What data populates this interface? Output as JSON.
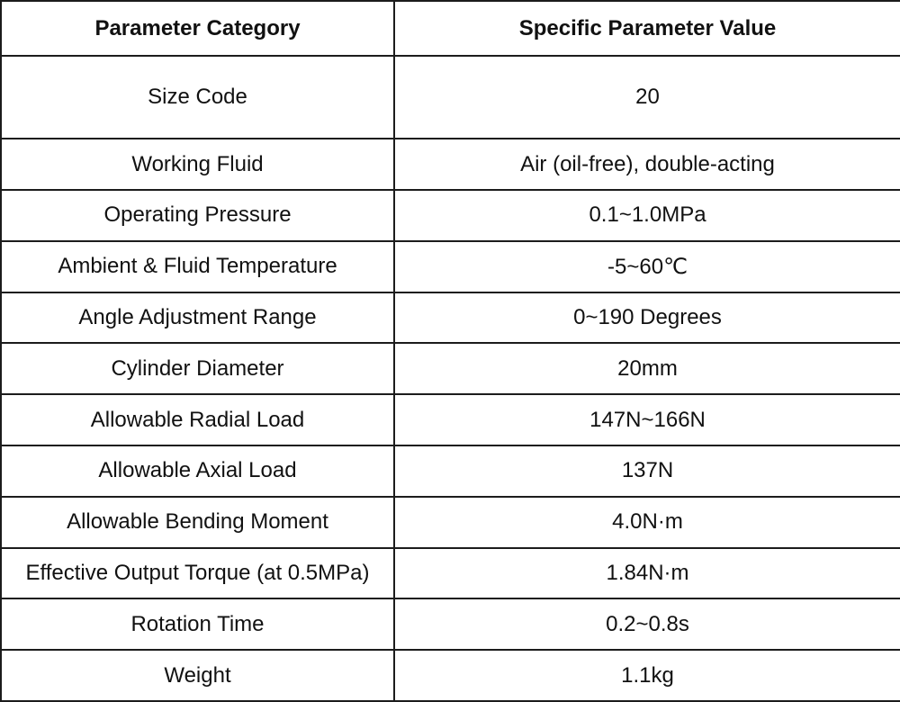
{
  "table": {
    "name": "pneumatic-actuator-specification-table",
    "colors": {
      "border": "#1c1c1c",
      "text": "#111111",
      "background": "#ffffff"
    },
    "headers": [
      {
        "label": "Parameter Category"
      },
      {
        "label": "Specific Parameter Value"
      }
    ],
    "rows": [
      {
        "category": "Size Code",
        "value": "20"
      },
      {
        "category": "Working Fluid",
        "value": "Air (oil-free), double-acting"
      },
      {
        "category": "Operating Pressure",
        "value": "0.1~1.0MPa"
      },
      {
        "category": "Ambient & Fluid Temperature",
        "value": "-5~60℃"
      },
      {
        "category": "Angle Adjustment Range",
        "value": "0~190 Degrees"
      },
      {
        "category": "Cylinder Diameter",
        "value": "20mm"
      },
      {
        "category": "Allowable Radial Load",
        "value": "147N~166N"
      },
      {
        "category": "Allowable Axial Load",
        "value": "137N"
      },
      {
        "category": "Allowable Bending Moment",
        "value": "4.0N·m"
      },
      {
        "category": "Effective Output Torque (at 0.5MPa)",
        "value": "1.84N·m"
      },
      {
        "category": "Rotation Time",
        "value": "0.2~0.8s"
      },
      {
        "category": "Weight",
        "value": "1.1kg"
      }
    ]
  }
}
